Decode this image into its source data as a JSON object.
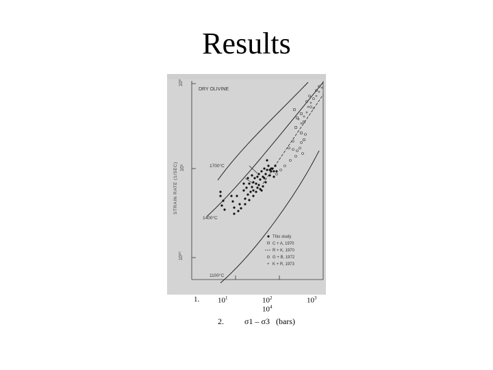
{
  "slide": {
    "title": "Results"
  },
  "chart_data": {
    "type": "scatter",
    "title": "DRY OLIVINE",
    "ylabel": "STRAIN RATE (1/SEC)",
    "xlabel": "σ1 – σ3 (bars)",
    "ylog": true,
    "xlog": true,
    "y_ticks": [
      "10⁰",
      "10⁵",
      "10¹⁰"
    ],
    "x_ticks": [
      "10¹",
      "10²",
      "10³"
    ],
    "x_tick_extra": "10⁴",
    "temperature_curves": [
      "1700°C",
      "1400°C",
      "1100°C"
    ],
    "legend": {
      "placement": "bottom-right",
      "entries": [
        "This study",
        "C + A, 1970",
        "R + K, 1970",
        "G + B, 1972",
        "K + R, 1973"
      ]
    },
    "series": [
      {
        "name": "This study",
        "marker": "filled-circle"
      },
      {
        "name": "C + A, 1970",
        "marker": "open-square"
      },
      {
        "name": "R + K, 1970",
        "marker": "dashed-line"
      },
      {
        "name": "G + B, 1972",
        "marker": "open-circle"
      },
      {
        "name": "K + R, 1973",
        "marker": "cross"
      }
    ]
  },
  "captions": {
    "num1": "1.",
    "x1": "10",
    "x1_exp": "1",
    "x2": "10",
    "x2_exp": "2",
    "x2b": "10",
    "x2b_exp": "4",
    "x3": "10",
    "x3_exp": "3",
    "num2": "2.",
    "axis": "σ1 – σ3",
    "units": "(bars)"
  }
}
